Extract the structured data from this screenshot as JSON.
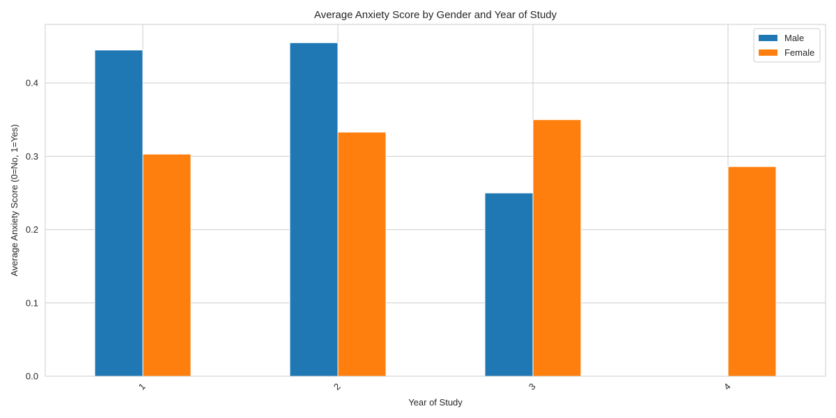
{
  "chart_data": {
    "type": "bar",
    "title": "Average Anxiety Score by Gender and Year of Study",
    "xlabel": "Year of Study",
    "ylabel": "Average Anxiety Score (0=No, 1=Yes)",
    "categories": [
      "1",
      "2",
      "3",
      "4"
    ],
    "series": [
      {
        "name": "Male",
        "values": [
          0.445,
          0.455,
          0.25,
          null
        ],
        "color": "#1f77b4"
      },
      {
        "name": "Female",
        "values": [
          0.303,
          0.333,
          0.35,
          0.286
        ],
        "color": "#ff7f0e"
      }
    ],
    "ylim": [
      0,
      0.48
    ],
    "yticks": [
      "0.0",
      "0.1",
      "0.2",
      "0.3",
      "0.4"
    ],
    "grid": true,
    "legend_position": "top-right"
  }
}
